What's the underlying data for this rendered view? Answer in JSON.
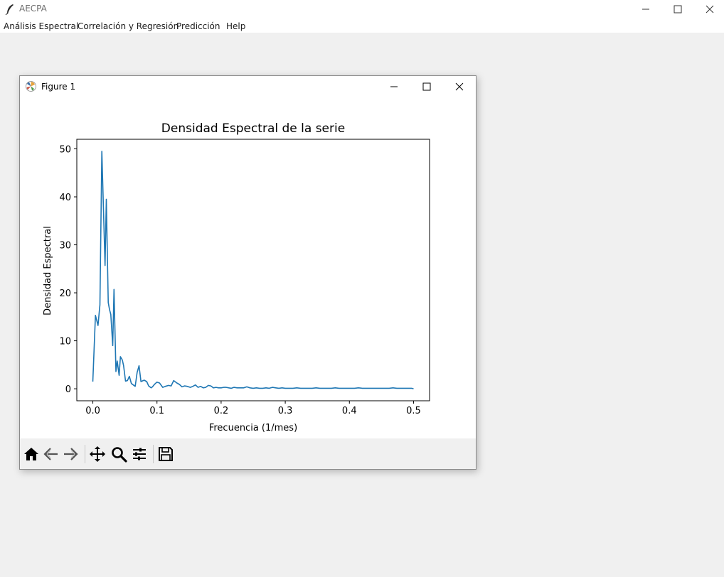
{
  "app": {
    "title": "AECPA",
    "window_controls": [
      "minimize-icon",
      "maximize-icon",
      "close-icon"
    ]
  },
  "menubar": {
    "items": [
      {
        "label": "Análisis Espectral"
      },
      {
        "label": "Correlación y Regresión"
      },
      {
        "label": "Predicción"
      },
      {
        "label": "Help"
      }
    ]
  },
  "figure": {
    "title": "Figure 1",
    "window_controls": [
      "minimize-icon",
      "maximize-icon",
      "close-icon"
    ],
    "toolbar": {
      "buttons": [
        "home-icon",
        "back-arrow-icon",
        "forward-arrow-icon",
        "pan-icon",
        "zoom-icon",
        "configure-subplots-icon",
        "save-icon"
      ]
    }
  },
  "chart_data": {
    "type": "line",
    "title": "Densidad Espectral de la serie",
    "xlabel": "Frecuencia (1/mes)",
    "ylabel": "Densidad Espectral",
    "xlim": [
      -0.025,
      0.525
    ],
    "ylim": [
      -2.5,
      52
    ],
    "xticks": [
      "0.0",
      "0.1",
      "0.2",
      "0.3",
      "0.4",
      "0.5"
    ],
    "xtick_values": [
      0.0,
      0.1,
      0.2,
      0.3,
      0.4,
      0.5
    ],
    "yticks": [
      "0",
      "10",
      "20",
      "30",
      "40",
      "50"
    ],
    "ytick_values": [
      0,
      10,
      20,
      30,
      40,
      50
    ],
    "grid": false,
    "line_color": "#1f77b4",
    "series": [
      {
        "x": [
          0.0,
          0.004,
          0.008,
          0.011,
          0.014,
          0.016,
          0.019,
          0.021,
          0.024,
          0.026,
          0.028,
          0.031,
          0.033,
          0.036,
          0.038,
          0.041,
          0.043,
          0.046,
          0.048,
          0.051,
          0.054,
          0.057,
          0.06,
          0.066,
          0.069,
          0.072,
          0.075,
          0.08,
          0.084,
          0.087,
          0.091,
          0.093,
          0.096,
          0.1,
          0.104,
          0.109,
          0.113,
          0.118,
          0.122,
          0.126,
          0.131,
          0.135,
          0.139,
          0.143,
          0.147,
          0.152,
          0.156,
          0.16,
          0.164,
          0.168,
          0.172,
          0.176,
          0.18,
          0.184,
          0.188,
          0.192,
          0.196,
          0.2,
          0.204,
          0.208,
          0.212,
          0.216,
          0.22,
          0.225,
          0.23,
          0.235,
          0.24,
          0.245,
          0.25,
          0.255,
          0.26,
          0.265,
          0.27,
          0.275,
          0.28,
          0.285,
          0.29,
          0.295,
          0.3,
          0.306,
          0.312,
          0.318,
          0.324,
          0.33,
          0.336,
          0.342,
          0.348,
          0.354,
          0.36,
          0.366,
          0.372,
          0.378,
          0.384,
          0.39,
          0.396,
          0.402,
          0.408,
          0.414,
          0.42,
          0.426,
          0.432,
          0.438,
          0.444,
          0.45,
          0.456,
          0.462,
          0.468,
          0.474,
          0.48,
          0.486,
          0.492,
          0.497,
          0.5
        ],
        "y": [
          1.5,
          15.3,
          13.2,
          17.5,
          49.5,
          40.0,
          25.7,
          39.5,
          18.0,
          16.5,
          15.5,
          9.0,
          20.7,
          3.6,
          5.8,
          2.8,
          6.7,
          6.0,
          4.8,
          1.6,
          1.7,
          2.6,
          1.1,
          0.5,
          3.4,
          4.8,
          1.5,
          1.8,
          1.5,
          0.6,
          0.2,
          0.4,
          0.9,
          1.4,
          1.2,
          0.3,
          0.5,
          0.7,
          0.6,
          1.7,
          1.2,
          0.9,
          0.4,
          0.6,
          0.5,
          0.3,
          0.5,
          0.8,
          0.3,
          0.5,
          0.2,
          0.3,
          0.7,
          0.6,
          0.2,
          0.3,
          0.2,
          0.2,
          0.3,
          0.3,
          0.2,
          0.1,
          0.3,
          0.2,
          0.2,
          0.2,
          0.4,
          0.2,
          0.1,
          0.2,
          0.1,
          0.1,
          0.2,
          0.1,
          0.3,
          0.2,
          0.1,
          0.2,
          0.1,
          0.1,
          0.1,
          0.2,
          0.1,
          0.1,
          0.1,
          0.1,
          0.2,
          0.1,
          0.1,
          0.1,
          0.1,
          0.2,
          0.1,
          0.1,
          0.1,
          0.1,
          0.1,
          0.2,
          0.1,
          0.1,
          0.1,
          0.1,
          0.1,
          0.1,
          0.1,
          0.1,
          0.2,
          0.1,
          0.1,
          0.1,
          0.1,
          0.1,
          0.0
        ]
      }
    ]
  }
}
